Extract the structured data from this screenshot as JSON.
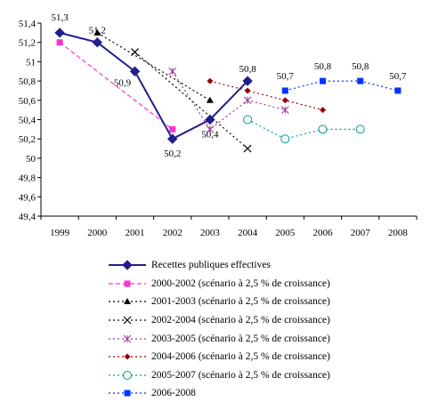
{
  "chart_data": {
    "type": "line",
    "title": "",
    "xlabel": "",
    "ylabel": "",
    "categories": [
      "1999",
      "2000",
      "2001",
      "2002",
      "2003",
      "2004",
      "2005",
      "2006",
      "2007",
      "2008"
    ],
    "ylim": [
      49.4,
      51.4
    ],
    "yticks": [
      "49,4",
      "49,6",
      "49,8",
      "50",
      "50,2",
      "50,4",
      "50,6",
      "50,8",
      "51",
      "51,2",
      "51,4"
    ],
    "grid": false,
    "legend_position": "bottom",
    "series": [
      {
        "name": "Recettes publiques effectives",
        "color": "#1f1f8c",
        "dash": "solid",
        "marker": "diamond",
        "width": 2,
        "x": [
          "1999",
          "2000",
          "2001",
          "2002",
          "2003",
          "2004"
        ],
        "values": [
          51.3,
          51.2,
          50.9,
          50.2,
          50.4,
          50.8
        ],
        "labels": [
          "51,3",
          "51,2",
          "50,9",
          "50,2",
          "50,4",
          "50,8"
        ]
      },
      {
        "name": "2000-2002 (scénario à 2,5 % de croissance)",
        "color": "#ff33cc",
        "dash": "dash",
        "marker": "square",
        "x": [
          "1999",
          "2002"
        ],
        "values": [
          51.2,
          50.3
        ]
      },
      {
        "name": "2001-2003 (scénario à 2,5 % de croissance)",
        "color": "#000000",
        "dash": "dot",
        "marker": "triangle",
        "x": [
          "2000",
          "2003"
        ],
        "values": [
          51.3,
          50.6
        ]
      },
      {
        "name": "2002-2004 (scénario à 2,5 % de croissance)",
        "color": "#000000",
        "dash": "dot",
        "marker": "x",
        "x": [
          "2001",
          "2004"
        ],
        "values": [
          51.1,
          50.1
        ]
      },
      {
        "name": "2003-2005 (scénario à 2,5 % de croissance)",
        "color": "#993399",
        "dash": "dot",
        "marker": "star",
        "x": [
          "2002",
          "2003",
          "2004",
          "2005"
        ],
        "values": [
          50.9,
          50.3,
          50.6,
          50.5
        ]
      },
      {
        "name": "2004-2006 (scénario à 2,5 % de croissance)",
        "color": "#990000",
        "dash": "dot",
        "marker": "diamond-small",
        "x": [
          "2003",
          "2004",
          "2005",
          "2006"
        ],
        "values": [
          50.8,
          50.7,
          50.6,
          50.5
        ]
      },
      {
        "name": "2005-2007 (scénario à 2,5 % de croissance)",
        "color": "#009999",
        "dash": "dot",
        "marker": "circle",
        "x": [
          "2004",
          "2005",
          "2006",
          "2007"
        ],
        "values": [
          50.4,
          50.2,
          50.3,
          50.3
        ]
      },
      {
        "name": "2006-2008",
        "color": "#0033ff",
        "dash": "dot",
        "marker": "square",
        "x": [
          "2005",
          "2006",
          "2007",
          "2008"
        ],
        "values": [
          50.7,
          50.8,
          50.8,
          50.7
        ],
        "labels": [
          "50,7",
          "50,8",
          "50,8",
          "50,7"
        ]
      }
    ]
  }
}
